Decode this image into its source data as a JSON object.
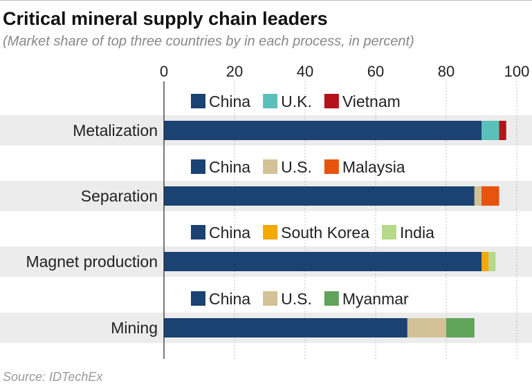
{
  "title": "Critical mineral supply chain leaders",
  "subtitle": "(Market share of top three countries by in each process, in percent)",
  "source": "Source: IDTechEx",
  "chart_data": {
    "type": "bar",
    "stacked": true,
    "orientation": "horizontal",
    "xlim": [
      0,
      100
    ],
    "xticks": [
      0,
      20,
      40,
      60,
      80,
      100
    ],
    "grid": true,
    "categories": [
      "Metalization",
      "Separation",
      "Magnet production",
      "Mining"
    ],
    "groups": [
      {
        "category": "Metalization",
        "segments": [
          {
            "name": "China",
            "value": 90,
            "color": "#1a4272"
          },
          {
            "name": "U.K.",
            "value": 5,
            "color": "#5cc0ba"
          },
          {
            "name": "Vietnam",
            "value": 2,
            "color": "#b5121b"
          }
        ]
      },
      {
        "category": "Separation",
        "segments": [
          {
            "name": "China",
            "value": 88,
            "color": "#1a4272"
          },
          {
            "name": "U.S.",
            "value": 2,
            "color": "#d2c295"
          },
          {
            "name": "Malaysia",
            "value": 5,
            "color": "#e8530e"
          }
        ]
      },
      {
        "category": "Magnet production",
        "segments": [
          {
            "name": "China",
            "value": 90,
            "color": "#1a4272"
          },
          {
            "name": "South Korea",
            "value": 2,
            "color": "#f5a800"
          },
          {
            "name": "India",
            "value": 2,
            "color": "#b6d98a"
          }
        ]
      },
      {
        "category": "Mining",
        "segments": [
          {
            "name": "China",
            "value": 69,
            "color": "#1a4272"
          },
          {
            "name": "U.S.",
            "value": 11,
            "color": "#d2c295"
          },
          {
            "name": "Myanmar",
            "value": 8,
            "color": "#62a35a"
          }
        ]
      }
    ]
  }
}
